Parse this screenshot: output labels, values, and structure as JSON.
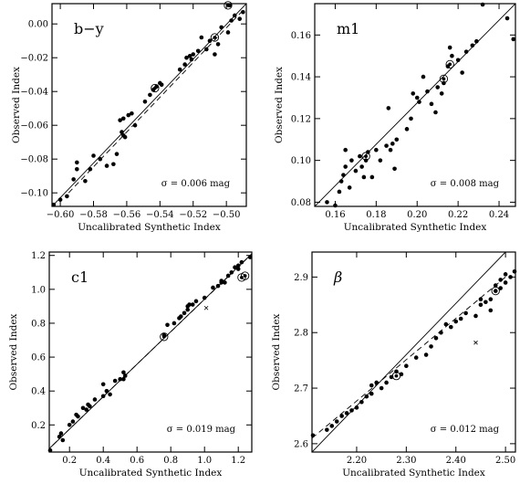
{
  "chart_data": [
    {
      "type": "scatter",
      "label": "b−y",
      "xlabel": "Uncalibrated Synthetic Index",
      "ylabel": "Observed Index",
      "annotation": "σ = 0.006 mag",
      "xlim": [
        -0.605,
        -0.488
      ],
      "ylim": [
        -0.108,
        0.012
      ],
      "xticks": [
        -0.6,
        -0.58,
        -0.56,
        -0.54,
        -0.52,
        -0.5
      ],
      "xtick_labels": [
        "−0.60",
        "−0.58",
        "−0.56",
        "−0.54",
        "−0.52",
        "−0.50"
      ],
      "yticks": [
        -0.1,
        -0.08,
        -0.06,
        -0.04,
        -0.02,
        0.0
      ],
      "ytick_labels": [
        "−0.10",
        "−0.08",
        "−0.06",
        "−0.04",
        "−0.02",
        "0.00"
      ],
      "fit_line": [
        [
          -0.605,
          -0.108
        ],
        [
          -0.488,
          0.012
        ]
      ],
      "dashed_line": [
        [
          -0.595,
          -0.1
        ],
        [
          -0.49,
          0.008
        ]
      ],
      "points": [
        [
          -0.604,
          -0.107
        ],
        [
          -0.6,
          -0.104
        ],
        [
          -0.596,
          -0.102
        ],
        [
          -0.592,
          -0.092
        ],
        [
          -0.59,
          -0.086
        ],
        [
          -0.59,
          -0.082
        ],
        [
          -0.585,
          -0.093
        ],
        [
          -0.582,
          -0.086
        ],
        [
          -0.58,
          -0.078
        ],
        [
          -0.576,
          -0.08
        ],
        [
          -0.572,
          -0.084
        ],
        [
          -0.568,
          -0.083
        ],
        [
          -0.566,
          -0.077
        ],
        [
          -0.563,
          -0.064
        ],
        [
          -0.562,
          -0.066
        ],
        [
          -0.561,
          -0.067
        ],
        [
          -0.564,
          -0.057
        ],
        [
          -0.562,
          -0.056
        ],
        [
          -0.559,
          -0.054
        ],
        [
          -0.557,
          -0.053
        ],
        [
          -0.555,
          -0.06
        ],
        [
          -0.549,
          -0.046
        ],
        [
          -0.546,
          -0.042
        ],
        [
          -0.544,
          -0.039
        ],
        [
          -0.542,
          -0.037
        ],
        [
          -0.54,
          -0.035
        ],
        [
          -0.539,
          -0.036
        ],
        [
          -0.528,
          -0.027
        ],
        [
          -0.525,
          -0.024
        ],
        [
          -0.524,
          -0.02
        ],
        [
          -0.522,
          -0.019
        ],
        [
          -0.521,
          -0.021
        ],
        [
          -0.52,
          -0.018
        ],
        [
          -0.517,
          -0.016
        ],
        [
          -0.515,
          -0.008
        ],
        [
          -0.512,
          -0.015
        ],
        [
          -0.51,
          -0.01
        ],
        [
          -0.507,
          -0.018
        ],
        [
          -0.505,
          -0.012
        ],
        [
          -0.503,
          -0.002
        ],
        [
          -0.499,
          -0.005
        ],
        [
          -0.497,
          0.002
        ],
        [
          -0.495,
          0.005
        ],
        [
          -0.492,
          0.003
        ],
        [
          -0.49,
          0.007
        ],
        [
          -0.498,
          0.011
        ]
      ],
      "circled_points": [
        [
          -0.543,
          -0.038
        ],
        [
          -0.507,
          -0.008
        ],
        [
          -0.499,
          0.011
        ]
      ],
      "crossed_points": []
    },
    {
      "type": "scatter",
      "label": "m1",
      "xlabel": "Uncalibrated Synthetic Index",
      "ylabel": "Observed Index",
      "annotation": "σ = 0.008 mag",
      "xlim": [
        0.15,
        0.248
      ],
      "ylim": [
        0.078,
        0.175
      ],
      "xticks": [
        0.16,
        0.18,
        0.2,
        0.22,
        0.24
      ],
      "xtick_labels": [
        "0.16",
        "0.18",
        "0.20",
        "0.22",
        "0.24"
      ],
      "yticks": [
        0.08,
        0.1,
        0.12,
        0.14,
        0.16
      ],
      "ytick_labels": [
        "0.08",
        "0.10",
        "0.12",
        "0.14",
        "0.16"
      ],
      "fit_line": [
        [
          0.15,
          0.078
        ],
        [
          0.248,
          0.175
        ]
      ],
      "dashed_line": [],
      "points": [
        [
          0.156,
          0.08
        ],
        [
          0.16,
          0.078
        ],
        [
          0.162,
          0.085
        ],
        [
          0.163,
          0.09
        ],
        [
          0.164,
          0.093
        ],
        [
          0.165,
          0.097
        ],
        [
          0.165,
          0.105
        ],
        [
          0.167,
          0.087
        ],
        [
          0.168,
          0.1
        ],
        [
          0.17,
          0.095
        ],
        [
          0.172,
          0.102
        ],
        [
          0.173,
          0.097
        ],
        [
          0.174,
          0.092
        ],
        [
          0.175,
          0.1
        ],
        [
          0.176,
          0.104
        ],
        [
          0.178,
          0.092
        ],
        [
          0.18,
          0.105
        ],
        [
          0.182,
          0.1
        ],
        [
          0.185,
          0.107
        ],
        [
          0.186,
          0.125
        ],
        [
          0.187,
          0.105
        ],
        [
          0.188,
          0.108
        ],
        [
          0.189,
          0.096
        ],
        [
          0.19,
          0.11
        ],
        [
          0.195,
          0.115
        ],
        [
          0.197,
          0.12
        ],
        [
          0.198,
          0.132
        ],
        [
          0.2,
          0.13
        ],
        [
          0.201,
          0.128
        ],
        [
          0.203,
          0.14
        ],
        [
          0.205,
          0.133
        ],
        [
          0.207,
          0.127
        ],
        [
          0.209,
          0.123
        ],
        [
          0.21,
          0.135
        ],
        [
          0.212,
          0.132
        ],
        [
          0.213,
          0.137
        ],
        [
          0.215,
          0.145
        ],
        [
          0.216,
          0.154
        ],
        [
          0.217,
          0.15
        ],
        [
          0.22,
          0.148
        ],
        [
          0.222,
          0.142
        ],
        [
          0.224,
          0.152
        ],
        [
          0.227,
          0.155
        ],
        [
          0.229,
          0.157
        ],
        [
          0.232,
          0.175
        ],
        [
          0.244,
          0.168
        ],
        [
          0.247,
          0.158
        ]
      ],
      "circled_points": [
        [
          0.175,
          0.102
        ],
        [
          0.213,
          0.139
        ],
        [
          0.216,
          0.146
        ]
      ],
      "crossed_points": []
    },
    {
      "type": "scatter",
      "label": "c1",
      "xlabel": "Uncalibrated Synthetic Index",
      "ylabel": "Observed Index",
      "annotation": "σ = 0.019 mag",
      "xlim": [
        0.08,
        1.28
      ],
      "ylim": [
        0.04,
        1.22
      ],
      "xticks": [
        0.2,
        0.4,
        0.6,
        0.8,
        1.0,
        1.2
      ],
      "xtick_labels": [
        "0.2",
        "0.4",
        "0.6",
        "0.8",
        "1.0",
        "1.2"
      ],
      "yticks": [
        0.2,
        0.4,
        0.6,
        0.8,
        1.0,
        1.2
      ],
      "ytick_labels": [
        "0.2",
        "0.4",
        "0.6",
        "0.8",
        "1.0",
        "1.2"
      ],
      "fit_line": [
        [
          0.08,
          0.06
        ],
        [
          1.28,
          1.21
        ]
      ],
      "dashed_line": [
        [
          0.1,
          0.08
        ],
        [
          1.25,
          1.18
        ]
      ],
      "points": [
        [
          0.08,
          0.05
        ],
        [
          0.14,
          0.13
        ],
        [
          0.15,
          0.15
        ],
        [
          0.16,
          0.11
        ],
        [
          0.2,
          0.2
        ],
        [
          0.22,
          0.22
        ],
        [
          0.24,
          0.26
        ],
        [
          0.25,
          0.25
        ],
        [
          0.28,
          0.3
        ],
        [
          0.3,
          0.29
        ],
        [
          0.31,
          0.32
        ],
        [
          0.32,
          0.31
        ],
        [
          0.35,
          0.35
        ],
        [
          0.4,
          0.37
        ],
        [
          0.4,
          0.44
        ],
        [
          0.42,
          0.4
        ],
        [
          0.44,
          0.38
        ],
        [
          0.47,
          0.46
        ],
        [
          0.5,
          0.47
        ],
        [
          0.52,
          0.51
        ],
        [
          0.52,
          0.47
        ],
        [
          0.53,
          0.49
        ],
        [
          0.76,
          0.73
        ],
        [
          0.78,
          0.79
        ],
        [
          0.82,
          0.8
        ],
        [
          0.85,
          0.83
        ],
        [
          0.86,
          0.84
        ],
        [
          0.88,
          0.86
        ],
        [
          0.9,
          0.88
        ],
        [
          0.9,
          0.9
        ],
        [
          0.91,
          0.91
        ],
        [
          0.93,
          0.91
        ],
        [
          0.95,
          0.93
        ],
        [
          1.0,
          0.95
        ],
        [
          1.05,
          1.01
        ],
        [
          1.08,
          1.02
        ],
        [
          1.1,
          1.04
        ],
        [
          1.1,
          1.05
        ],
        [
          1.12,
          1.04
        ],
        [
          1.14,
          1.08
        ],
        [
          1.16,
          1.1
        ],
        [
          1.18,
          1.13
        ],
        [
          1.2,
          1.14
        ],
        [
          1.2,
          1.12
        ],
        [
          1.22,
          1.16
        ],
        [
          1.27,
          1.19
        ]
      ],
      "circled_points": [
        [
          0.76,
          0.72
        ],
        [
          1.22,
          1.07
        ],
        [
          1.24,
          1.08
        ]
      ],
      "crossed_points": [
        [
          1.01,
          0.89
        ]
      ]
    },
    {
      "type": "scatter",
      "label": "β",
      "xlabel": "Uncalibrated Synthetic Index",
      "ylabel": "Observed Index",
      "annotation": "σ = 0.012 mag",
      "xlim": [
        2.11,
        2.52
      ],
      "ylim": [
        2.585,
        2.945
      ],
      "xticks": [
        2.2,
        2.3,
        2.4,
        2.5
      ],
      "xtick_labels": [
        "2.20",
        "2.30",
        "2.40",
        "2.50"
      ],
      "yticks": [
        2.6,
        2.7,
        2.8,
        2.9
      ],
      "ytick_labels": [
        "2.6",
        "2.7",
        "2.8",
        "2.9"
      ],
      "fit_line": [
        [
          2.11,
          2.585
        ],
        [
          2.5,
          2.945
        ]
      ],
      "dashed_line": [
        [
          2.11,
          2.61
        ],
        [
          2.5,
          2.9
        ]
      ],
      "points": [
        [
          2.11,
          2.615
        ],
        [
          2.14,
          2.625
        ],
        [
          2.15,
          2.632
        ],
        [
          2.16,
          2.64
        ],
        [
          2.17,
          2.65
        ],
        [
          2.18,
          2.655
        ],
        [
          2.19,
          2.66
        ],
        [
          2.2,
          2.665
        ],
        [
          2.21,
          2.675
        ],
        [
          2.22,
          2.685
        ],
        [
          2.23,
          2.69
        ],
        [
          2.23,
          2.705
        ],
        [
          2.24,
          2.71
        ],
        [
          2.25,
          2.7
        ],
        [
          2.26,
          2.71
        ],
        [
          2.27,
          2.72
        ],
        [
          2.28,
          2.73
        ],
        [
          2.29,
          2.725
        ],
        [
          2.3,
          2.74
        ],
        [
          2.32,
          2.755
        ],
        [
          2.34,
          2.76
        ],
        [
          2.35,
          2.775
        ],
        [
          2.36,
          2.79
        ],
        [
          2.37,
          2.8
        ],
        [
          2.38,
          2.815
        ],
        [
          2.39,
          2.81
        ],
        [
          2.4,
          2.82
        ],
        [
          2.41,
          2.825
        ],
        [
          2.42,
          2.835
        ],
        [
          2.44,
          2.83
        ],
        [
          2.45,
          2.85
        ],
        [
          2.45,
          2.86
        ],
        [
          2.46,
          2.855
        ],
        [
          2.47,
          2.86
        ],
        [
          2.48,
          2.875
        ],
        [
          2.48,
          2.885
        ],
        [
          2.49,
          2.88
        ],
        [
          2.49,
          2.895
        ],
        [
          2.5,
          2.89
        ],
        [
          2.5,
          2.905
        ],
        [
          2.51,
          2.9
        ],
        [
          2.52,
          2.91
        ],
        [
          2.47,
          2.84
        ]
      ],
      "circled_points": [
        [
          2.28,
          2.722
        ],
        [
          2.48,
          2.875
        ]
      ],
      "crossed_points": [
        [
          2.44,
          2.782
        ]
      ]
    }
  ]
}
